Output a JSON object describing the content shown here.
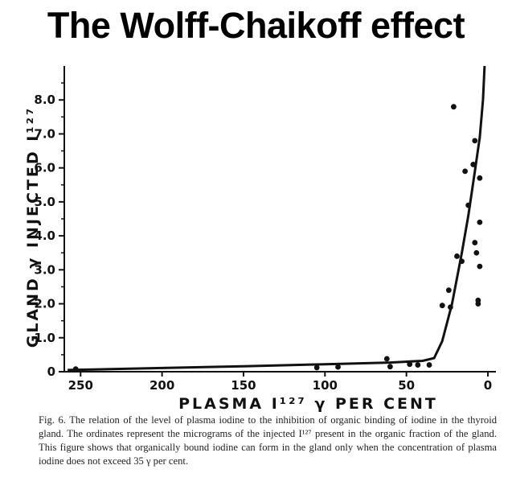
{
  "title": "The Wolff-Chaikoff effect",
  "caption": "Fig. 6. The relation of the level of plasma iodine to the inhibition of organic binding of iodine in the thyroid gland. The ordinates represent the micrograms of the injected I¹²⁷ present in the organic fraction of the gland. This figure shows that organically bound iodine can form in the gland only when the concentration of plasma iodine does not exceed 35 γ per cent.",
  "chart_data": {
    "type": "scatter",
    "title": "",
    "xlabel": "PLASMA I¹²⁷ γ PER CENT",
    "ylabel": "GLAND γ INJECTED I¹²⁷",
    "xlim": [
      260,
      0
    ],
    "ylim": [
      0,
      9
    ],
    "x_ticks": [
      250,
      200,
      150,
      100,
      50,
      0
    ],
    "x_tick_labels": [
      "250",
      "200",
      "150",
      "100",
      "50",
      "0"
    ],
    "y_ticks": [
      0,
      1,
      2,
      3,
      4,
      5,
      6,
      7,
      8
    ],
    "y_tick_labels": [
      "0",
      "1.0",
      "2.0",
      "3.0",
      "4.0",
      "5.0",
      "6.0",
      "7.0",
      "8.0"
    ],
    "grid": false,
    "points": [
      {
        "x": 253,
        "y": 0.08
      },
      {
        "x": 105,
        "y": 0.12
      },
      {
        "x": 92,
        "y": 0.14
      },
      {
        "x": 62,
        "y": 0.38
      },
      {
        "x": 60,
        "y": 0.15
      },
      {
        "x": 48,
        "y": 0.22
      },
      {
        "x": 43,
        "y": 0.2
      },
      {
        "x": 36,
        "y": 0.2
      },
      {
        "x": 28,
        "y": 1.95
      },
      {
        "x": 24,
        "y": 2.4
      },
      {
        "x": 23,
        "y": 1.9
      },
      {
        "x": 21,
        "y": 7.8
      },
      {
        "x": 19,
        "y": 3.4
      },
      {
        "x": 16,
        "y": 3.25
      },
      {
        "x": 14,
        "y": 5.9
      },
      {
        "x": 12,
        "y": 4.9
      },
      {
        "x": 9,
        "y": 6.1
      },
      {
        "x": 8,
        "y": 6.8
      },
      {
        "x": 8,
        "y": 3.8
      },
      {
        "x": 7,
        "y": 3.5
      },
      {
        "x": 6,
        "y": 2.1
      },
      {
        "x": 6,
        "y": 2.0
      },
      {
        "x": 5,
        "y": 5.7
      },
      {
        "x": 5,
        "y": 4.4
      },
      {
        "x": 5,
        "y": 3.1
      }
    ],
    "fit_line": {
      "x": [
        258,
        200,
        150,
        100,
        60,
        40,
        33,
        28,
        22,
        16,
        12,
        8,
        5,
        3,
        2
      ],
      "y": [
        0.05,
        0.11,
        0.16,
        0.22,
        0.27,
        0.32,
        0.4,
        0.9,
        2.0,
        3.5,
        4.6,
        5.9,
        6.9,
        8.0,
        9.0
      ]
    }
  }
}
